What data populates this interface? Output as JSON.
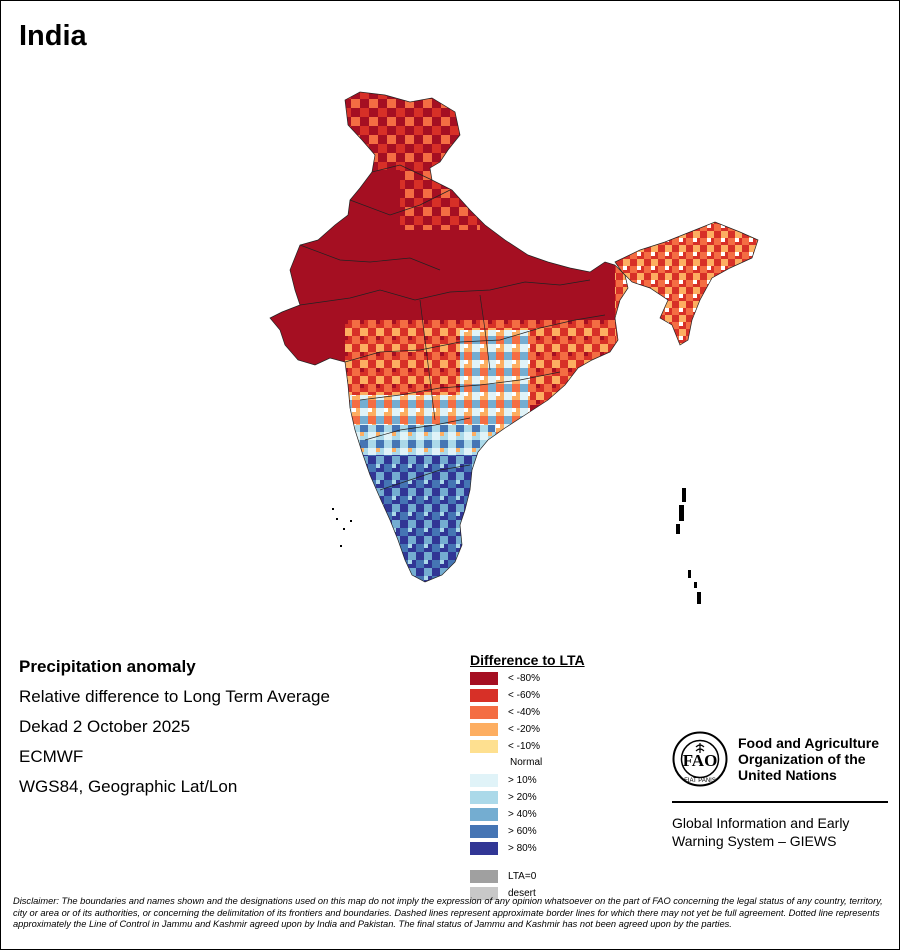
{
  "title": "India",
  "info": {
    "variable": "Precipitation anomaly",
    "description": "Relative difference to Long Term Average",
    "period": "Dekad 2 October 2025",
    "source": "ECMWF",
    "projection": "WGS84, Geographic Lat/Lon"
  },
  "legend": {
    "title": "Difference to LTA",
    "normal_label": "Normal",
    "items": [
      {
        "label": "< -80%",
        "color": "#a50f22"
      },
      {
        "label": "< -60%",
        "color": "#d73027"
      },
      {
        "label": "< -40%",
        "color": "#f46d43"
      },
      {
        "label": "< -20%",
        "color": "#fdae61"
      },
      {
        "label": "< -10%",
        "color": "#fee090"
      },
      {
        "label": "> 10%",
        "color": "#e0f3f8"
      },
      {
        "label": "> 20%",
        "color": "#abd9e9"
      },
      {
        "label": "> 40%",
        "color": "#74add1"
      },
      {
        "label": "> 60%",
        "color": "#4575b4"
      },
      {
        "label": "> 80%",
        "color": "#313695"
      },
      {
        "label": "LTA=0",
        "color": "#a0a0a0"
      },
      {
        "label": "desert",
        "color": "#c8c8c8"
      }
    ]
  },
  "branding": {
    "org_name": "Food and Agriculture Organization of the United Nations",
    "motto": "FIAT PANIS",
    "system_name": "Global Information and Early Warning System – GIEWS"
  },
  "disclaimer": "Disclaimer: The boundaries and names shown and the designations used on this map do not imply the expression of any opinion whatsoever on the part of FAO concerning the legal status of any country, territory, city or area or of its authorities, or concerning the delimitation of its frontiers and boundaries. Dashed lines represent approximate border lines for which there may not yet be full agreement. Dotted line represents approximately the Line of Control in Jammu and Kashmir agreed upon by India and Pakistan. The final status of Jammu and Kashmir has not been agreed upon by the parties."
}
